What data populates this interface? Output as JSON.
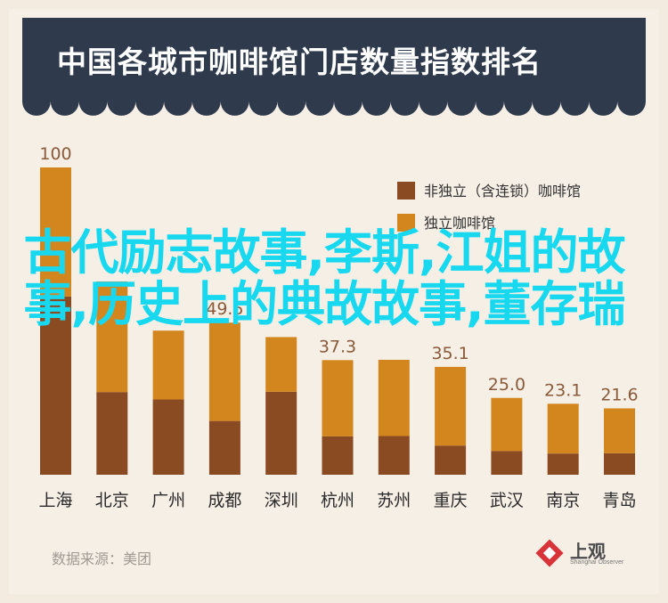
{
  "title": "中国各城市咖啡馆门店数量指数排名",
  "source": "数据来源：美团",
  "overlay_text": "古代励志故事,李斯,江姐的故事,历史上的典故故事,董存瑞",
  "logo": {
    "name": "上观",
    "sub": "Shanghai Observer"
  },
  "colors": {
    "non_independent": "#8a4a22",
    "independent": "#d4861e",
    "header": "#2f3b4d",
    "overlay_text": "#18d8f0"
  },
  "chart_data": {
    "type": "bar",
    "stacked": true,
    "categories": [
      "上海",
      "北京",
      "广州",
      "成都",
      "深圳",
      "杭州",
      "苏州",
      "重庆",
      "武汉",
      "南京",
      "青岛"
    ],
    "totals": [
      100,
      62.9,
      46.9,
      49.5,
      44.8,
      37.3,
      37.4,
      35.1,
      25.0,
      23.1,
      21.6
    ],
    "total_labels": [
      "100",
      "",
      "",
      "49.5",
      "",
      "37.3",
      "",
      "35.1",
      "25.0",
      "23.1",
      "21.6"
    ],
    "series": [
      {
        "name": "非独立（含连锁）咖啡馆",
        "values": [
          58,
          26.9,
          24.5,
          17.5,
          27,
          12.5,
          12.6,
          9.5,
          7.7,
          6.9,
          7.0
        ]
      },
      {
        "name": "独立咖啡馆",
        "values": [
          42,
          36,
          22.4,
          32,
          17.8,
          24.8,
          24.8,
          25.6,
          17.3,
          16.2,
          14.6
        ]
      }
    ],
    "ylim": [
      0,
      100
    ],
    "legend_position": "top-right"
  }
}
